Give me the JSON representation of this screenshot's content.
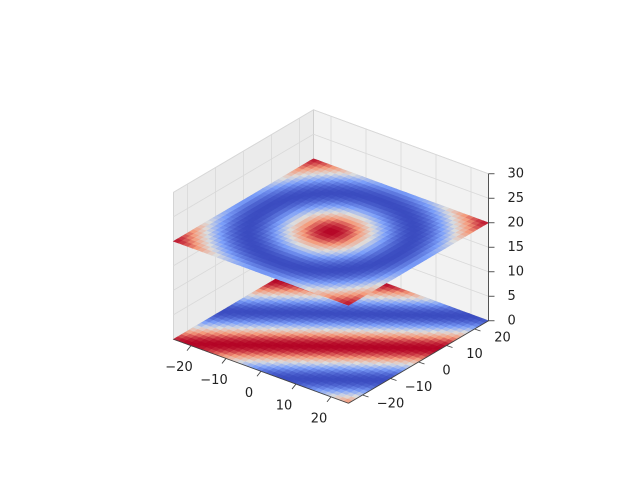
{
  "chart_data": {
    "type": "surface3d",
    "title": "",
    "xlabel": "",
    "ylabel": "",
    "zlabel": "",
    "x_ticks": [
      -20,
      -10,
      0,
      10,
      20
    ],
    "y_ticks": [
      -20,
      -10,
      0,
      10,
      20
    ],
    "z_ticks": [
      0,
      5,
      10,
      15,
      20,
      25,
      30
    ],
    "x_tick_labels": [
      "−20",
      "−10",
      "0",
      "10",
      "20"
    ],
    "y_tick_labels": [
      "−20",
      "−10",
      "0",
      "10",
      "20"
    ],
    "z_tick_labels": [
      "0",
      "5",
      "10",
      "15",
      "20",
      "25",
      "30"
    ],
    "xlim": [
      -25,
      25
    ],
    "ylim": [
      -25,
      25
    ],
    "zlim": [
      0,
      30
    ],
    "grid": true,
    "colormap": "coolwarm",
    "surfaces": [
      {
        "description_key": "lower",
        "z_level": 0,
        "pattern": "diagonal wave bands",
        "extent_x": [
          -25,
          25
        ],
        "extent_y": [
          -25,
          25
        ]
      },
      {
        "description_key": "upper",
        "z_level": 20,
        "pattern": "radial peak at center",
        "extent_x": [
          -25,
          25
        ],
        "extent_y": [
          -25,
          25
        ]
      }
    ],
    "colors": {
      "pane": "#f2f2f2",
      "pane_edge": "#cccccc",
      "grid": "#d9d9d9",
      "axis": "#444444",
      "cold": "#3b4cc0",
      "neutral": "#dddddd",
      "hot": "#b40426"
    }
  }
}
